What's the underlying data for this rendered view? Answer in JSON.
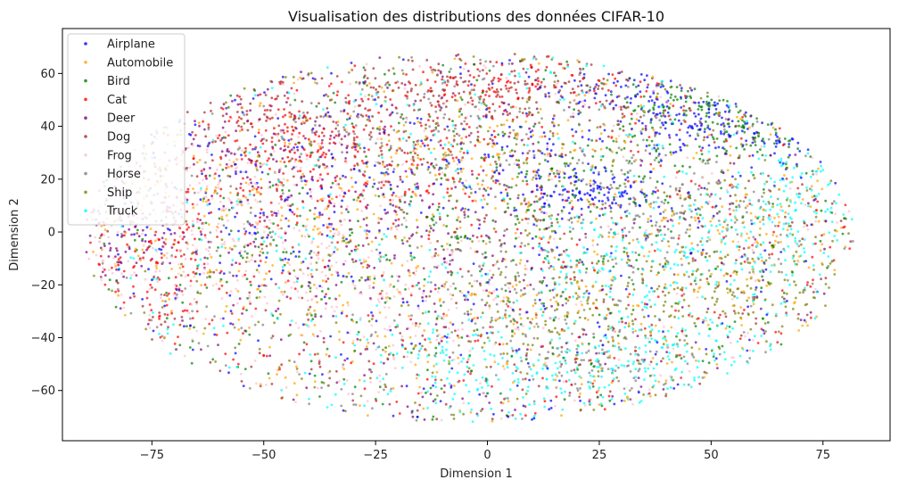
{
  "chart_data": {
    "type": "scatter",
    "title": "Visualisation des distributions des données CIFAR-10",
    "xlabel": "Dimension 1",
    "ylabel": "Dimension 2",
    "xlim": [
      -95,
      90
    ],
    "ylim": [
      -79,
      77
    ],
    "xticks": [
      -75,
      -50,
      -25,
      0,
      25,
      50,
      75
    ],
    "yticks": [
      -60,
      -40,
      -20,
      0,
      20,
      40,
      60
    ],
    "xtick_labels": [
      "−75",
      "−50",
      "−25",
      "0",
      "25",
      "50",
      "75"
    ],
    "ytick_labels": [
      "−60",
      "−40",
      "−20",
      "0",
      "20",
      "40",
      "60"
    ],
    "grid": false,
    "legend_position": "top-left",
    "series": [
      {
        "name": "Airplane",
        "color": "#0000ff",
        "clusters": [
          [
            35,
            53,
            10,
            5
          ],
          [
            47,
            40,
            8,
            6
          ],
          [
            70,
            36,
            7,
            5
          ],
          [
            25,
            15,
            6,
            4
          ],
          [
            -45,
            5,
            15,
            15
          ],
          [
            10,
            25,
            15,
            10
          ]
        ]
      },
      {
        "name": "Automobile",
        "color": "#ffa500",
        "clusters": [
          [
            77,
            -35,
            3,
            2
          ],
          [
            -30,
            -20,
            20,
            20
          ],
          [
            20,
            -30,
            20,
            15
          ],
          [
            -60,
            10,
            20,
            15
          ],
          [
            60,
            0,
            15,
            10
          ],
          [
            0,
            30,
            20,
            10
          ]
        ]
      },
      {
        "name": "Bird",
        "color": "#008000",
        "clusters": [
          [
            45,
            48,
            8,
            5
          ],
          [
            62,
            38,
            8,
            5
          ],
          [
            0,
            10,
            20,
            20
          ],
          [
            -40,
            -10,
            20,
            20
          ],
          [
            30,
            20,
            15,
            15
          ]
        ]
      },
      {
        "name": "Cat",
        "color": "#ff0000",
        "clusters": [
          [
            -70,
            -15,
            10,
            12
          ],
          [
            -20,
            25,
            15,
            12
          ],
          [
            -40,
            35,
            15,
            10
          ],
          [
            0,
            55,
            15,
            5
          ],
          [
            -60,
            20,
            15,
            15
          ]
        ]
      },
      {
        "name": "Deer",
        "color": "#800080",
        "clusters": [
          [
            -35,
            10,
            15,
            15
          ],
          [
            -80,
            0,
            8,
            10
          ],
          [
            -10,
            -10,
            15,
            15
          ],
          [
            -55,
            30,
            15,
            12
          ]
        ]
      },
      {
        "name": "Dog",
        "color": "#a52a2a",
        "clusters": [
          [
            0,
            55,
            15,
            6
          ],
          [
            -50,
            45,
            15,
            8
          ],
          [
            -20,
            40,
            15,
            10
          ],
          [
            15,
            50,
            15,
            8
          ]
        ]
      },
      {
        "name": "Frog",
        "color": "#ffc0cb",
        "clusters": [
          [
            -70,
            -10,
            10,
            12
          ],
          [
            -40,
            -5,
            12,
            15
          ],
          [
            -15,
            -30,
            12,
            12
          ],
          [
            -55,
            15,
            12,
            12
          ]
        ]
      },
      {
        "name": "Horse",
        "color": "#808080",
        "clusters": [
          [
            25,
            -50,
            10,
            6
          ],
          [
            50,
            5,
            12,
            10
          ],
          [
            -15,
            40,
            18,
            15
          ],
          [
            35,
            20,
            12,
            12
          ],
          [
            10,
            -20,
            15,
            15
          ]
        ]
      },
      {
        "name": "Ship",
        "color": "#808000",
        "clusters": [
          [
            40,
            -20,
            15,
            12
          ],
          [
            15,
            -35,
            12,
            10
          ],
          [
            60,
            -25,
            12,
            10
          ],
          [
            0,
            20,
            20,
            20
          ]
        ]
      },
      {
        "name": "Truck",
        "color": "#00ffff",
        "clusters": [
          [
            20,
            -55,
            15,
            8
          ],
          [
            45,
            -45,
            12,
            8
          ],
          [
            60,
            -5,
            10,
            10
          ],
          [
            70,
            15,
            8,
            10
          ],
          [
            -5,
            -50,
            12,
            10
          ],
          [
            30,
            -15,
            12,
            10
          ]
        ]
      }
    ]
  }
}
